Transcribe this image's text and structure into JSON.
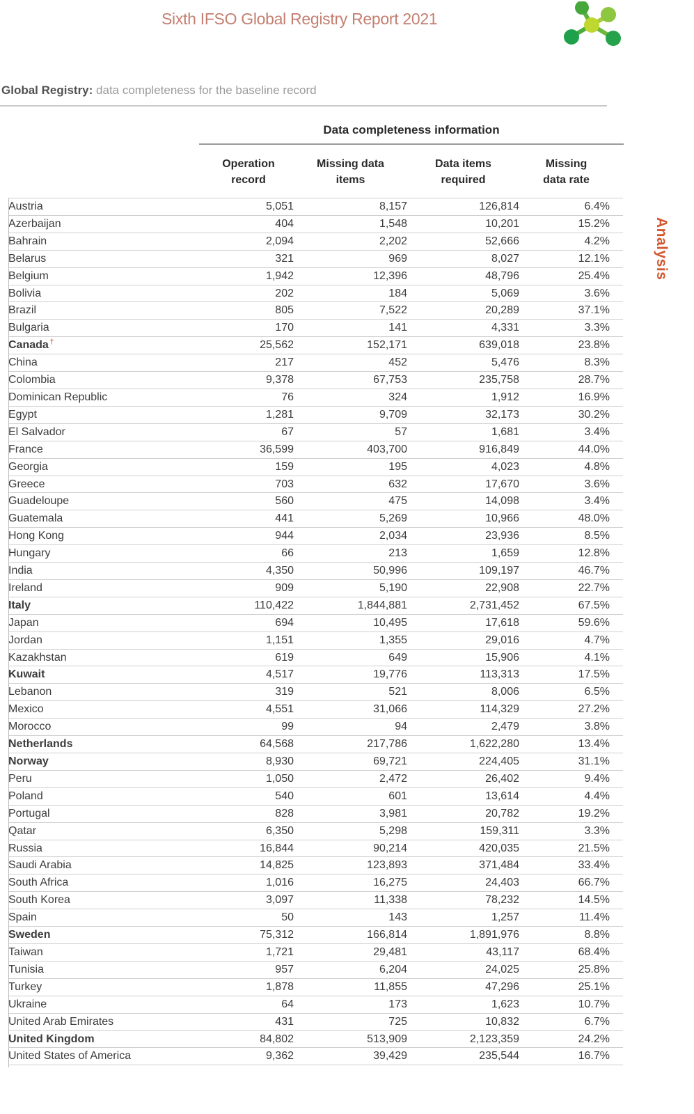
{
  "header": {
    "title": "Sixth IFSO Global Registry Report 2021",
    "logo": "molecule-icon"
  },
  "section": {
    "label_bold": "Global Registry:",
    "label_rest": " data completeness for the baseline record"
  },
  "side_tab": {
    "label": "Analysis"
  },
  "colors": {
    "title_salmon": "#c47f71",
    "highlight_orange": "#d2572f",
    "body_text": "#3c3c3c",
    "rule_gray": "#cfcfcf",
    "logo_greens": [
      "#1fa14c",
      "#46a83b",
      "#8dc63f",
      "#c0d730"
    ]
  },
  "table": {
    "group_header": "Data completeness information",
    "columns": [
      "Operation\nrecord",
      "Missing data\nitems",
      "Data items\nrequired",
      "Missing\ndata rate"
    ],
    "rows": [
      {
        "country": "Austria",
        "operation_record": "5,051",
        "missing_data_items": "8,157",
        "data_items_required": "126,814",
        "missing_data_rate": "6.4%",
        "highlight": false,
        "note": ""
      },
      {
        "country": "Azerbaijan",
        "operation_record": "404",
        "missing_data_items": "1,548",
        "data_items_required": "10,201",
        "missing_data_rate": "15.2%",
        "highlight": false,
        "note": ""
      },
      {
        "country": "Bahrain",
        "operation_record": "2,094",
        "missing_data_items": "2,202",
        "data_items_required": "52,666",
        "missing_data_rate": "4.2%",
        "highlight": false,
        "note": ""
      },
      {
        "country": "Belarus",
        "operation_record": "321",
        "missing_data_items": "969",
        "data_items_required": "8,027",
        "missing_data_rate": "12.1%",
        "highlight": false,
        "note": ""
      },
      {
        "country": "Belgium",
        "operation_record": "1,942",
        "missing_data_items": "12,396",
        "data_items_required": "48,796",
        "missing_data_rate": "25.4%",
        "highlight": false,
        "note": ""
      },
      {
        "country": "Bolivia",
        "operation_record": "202",
        "missing_data_items": "184",
        "data_items_required": "5,069",
        "missing_data_rate": "3.6%",
        "highlight": false,
        "note": ""
      },
      {
        "country": "Brazil",
        "operation_record": "805",
        "missing_data_items": "7,522",
        "data_items_required": "20,289",
        "missing_data_rate": "37.1%",
        "highlight": false,
        "note": ""
      },
      {
        "country": "Bulgaria",
        "operation_record": "170",
        "missing_data_items": "141",
        "data_items_required": "4,331",
        "missing_data_rate": "3.3%",
        "highlight": false,
        "note": ""
      },
      {
        "country": "Canada",
        "operation_record": "25,562",
        "missing_data_items": "152,171",
        "data_items_required": "639,018",
        "missing_data_rate": "23.8%",
        "highlight": true,
        "note": "†"
      },
      {
        "country": "China",
        "operation_record": "217",
        "missing_data_items": "452",
        "data_items_required": "5,476",
        "missing_data_rate": "8.3%",
        "highlight": false,
        "note": ""
      },
      {
        "country": "Colombia",
        "operation_record": "9,378",
        "missing_data_items": "67,753",
        "data_items_required": "235,758",
        "missing_data_rate": "28.7%",
        "highlight": false,
        "note": ""
      },
      {
        "country": "Dominican Republic",
        "operation_record": "76",
        "missing_data_items": "324",
        "data_items_required": "1,912",
        "missing_data_rate": "16.9%",
        "highlight": false,
        "note": ""
      },
      {
        "country": "Egypt",
        "operation_record": "1,281",
        "missing_data_items": "9,709",
        "data_items_required": "32,173",
        "missing_data_rate": "30.2%",
        "highlight": false,
        "note": ""
      },
      {
        "country": "El Salvador",
        "operation_record": "67",
        "missing_data_items": "57",
        "data_items_required": "1,681",
        "missing_data_rate": "3.4%",
        "highlight": false,
        "note": ""
      },
      {
        "country": "France",
        "operation_record": "36,599",
        "missing_data_items": "403,700",
        "data_items_required": "916,849",
        "missing_data_rate": "44.0%",
        "highlight": false,
        "note": ""
      },
      {
        "country": "Georgia",
        "operation_record": "159",
        "missing_data_items": "195",
        "data_items_required": "4,023",
        "missing_data_rate": "4.8%",
        "highlight": false,
        "note": ""
      },
      {
        "country": "Greece",
        "operation_record": "703",
        "missing_data_items": "632",
        "data_items_required": "17,670",
        "missing_data_rate": "3.6%",
        "highlight": false,
        "note": ""
      },
      {
        "country": "Guadeloupe",
        "operation_record": "560",
        "missing_data_items": "475",
        "data_items_required": "14,098",
        "missing_data_rate": "3.4%",
        "highlight": false,
        "note": ""
      },
      {
        "country": "Guatemala",
        "operation_record": "441",
        "missing_data_items": "5,269",
        "data_items_required": "10,966",
        "missing_data_rate": "48.0%",
        "highlight": false,
        "note": ""
      },
      {
        "country": "Hong Kong",
        "operation_record": "944",
        "missing_data_items": "2,034",
        "data_items_required": "23,936",
        "missing_data_rate": "8.5%",
        "highlight": false,
        "note": ""
      },
      {
        "country": "Hungary",
        "operation_record": "66",
        "missing_data_items": "213",
        "data_items_required": "1,659",
        "missing_data_rate": "12.8%",
        "highlight": false,
        "note": ""
      },
      {
        "country": "India",
        "operation_record": "4,350",
        "missing_data_items": "50,996",
        "data_items_required": "109,197",
        "missing_data_rate": "46.7%",
        "highlight": false,
        "note": ""
      },
      {
        "country": "Ireland",
        "operation_record": "909",
        "missing_data_items": "5,190",
        "data_items_required": "22,908",
        "missing_data_rate": "22.7%",
        "highlight": false,
        "note": ""
      },
      {
        "country": "Italy",
        "operation_record": "110,422",
        "missing_data_items": "1,844,881",
        "data_items_required": "2,731,452",
        "missing_data_rate": "67.5%",
        "highlight": true,
        "note": ""
      },
      {
        "country": "Japan",
        "operation_record": "694",
        "missing_data_items": "10,495",
        "data_items_required": "17,618",
        "missing_data_rate": "59.6%",
        "highlight": false,
        "note": ""
      },
      {
        "country": "Jordan",
        "operation_record": "1,151",
        "missing_data_items": "1,355",
        "data_items_required": "29,016",
        "missing_data_rate": "4.7%",
        "highlight": false,
        "note": ""
      },
      {
        "country": "Kazakhstan",
        "operation_record": "619",
        "missing_data_items": "649",
        "data_items_required": "15,906",
        "missing_data_rate": "4.1%",
        "highlight": false,
        "note": ""
      },
      {
        "country": "Kuwait",
        "operation_record": "4,517",
        "missing_data_items": "19,776",
        "data_items_required": "113,313",
        "missing_data_rate": "17.5%",
        "highlight": true,
        "note": ""
      },
      {
        "country": "Lebanon",
        "operation_record": "319",
        "missing_data_items": "521",
        "data_items_required": "8,006",
        "missing_data_rate": "6.5%",
        "highlight": false,
        "note": ""
      },
      {
        "country": "Mexico",
        "operation_record": "4,551",
        "missing_data_items": "31,066",
        "data_items_required": "114,329",
        "missing_data_rate": "27.2%",
        "highlight": false,
        "note": ""
      },
      {
        "country": "Morocco",
        "operation_record": "99",
        "missing_data_items": "94",
        "data_items_required": "2,479",
        "missing_data_rate": "3.8%",
        "highlight": false,
        "note": ""
      },
      {
        "country": "Netherlands",
        "operation_record": "64,568",
        "missing_data_items": "217,786",
        "data_items_required": "1,622,280",
        "missing_data_rate": "13.4%",
        "highlight": true,
        "note": ""
      },
      {
        "country": "Norway",
        "operation_record": "8,930",
        "missing_data_items": "69,721",
        "data_items_required": "224,405",
        "missing_data_rate": "31.1%",
        "highlight": true,
        "note": ""
      },
      {
        "country": "Peru",
        "operation_record": "1,050",
        "missing_data_items": "2,472",
        "data_items_required": "26,402",
        "missing_data_rate": "9.4%",
        "highlight": false,
        "note": ""
      },
      {
        "country": "Poland",
        "operation_record": "540",
        "missing_data_items": "601",
        "data_items_required": "13,614",
        "missing_data_rate": "4.4%",
        "highlight": false,
        "note": ""
      },
      {
        "country": "Portugal",
        "operation_record": "828",
        "missing_data_items": "3,981",
        "data_items_required": "20,782",
        "missing_data_rate": "19.2%",
        "highlight": false,
        "note": ""
      },
      {
        "country": "Qatar",
        "operation_record": "6,350",
        "missing_data_items": "5,298",
        "data_items_required": "159,311",
        "missing_data_rate": "3.3%",
        "highlight": false,
        "note": ""
      },
      {
        "country": "Russia",
        "operation_record": "16,844",
        "missing_data_items": "90,214",
        "data_items_required": "420,035",
        "missing_data_rate": "21.5%",
        "highlight": false,
        "note": ""
      },
      {
        "country": "Saudi Arabia",
        "operation_record": "14,825",
        "missing_data_items": "123,893",
        "data_items_required": "371,484",
        "missing_data_rate": "33.4%",
        "highlight": false,
        "note": ""
      },
      {
        "country": "South Africa",
        "operation_record": "1,016",
        "missing_data_items": "16,275",
        "data_items_required": "24,403",
        "missing_data_rate": "66.7%",
        "highlight": false,
        "note": ""
      },
      {
        "country": "South Korea",
        "operation_record": "3,097",
        "missing_data_items": "11,338",
        "data_items_required": "78,232",
        "missing_data_rate": "14.5%",
        "highlight": false,
        "note": ""
      },
      {
        "country": "Spain",
        "operation_record": "50",
        "missing_data_items": "143",
        "data_items_required": "1,257",
        "missing_data_rate": "11.4%",
        "highlight": false,
        "note": ""
      },
      {
        "country": "Sweden",
        "operation_record": "75,312",
        "missing_data_items": "166,814",
        "data_items_required": "1,891,976",
        "missing_data_rate": "8.8%",
        "highlight": true,
        "note": ""
      },
      {
        "country": "Taiwan",
        "operation_record": "1,721",
        "missing_data_items": "29,481",
        "data_items_required": "43,117",
        "missing_data_rate": "68.4%",
        "highlight": false,
        "note": ""
      },
      {
        "country": "Tunisia",
        "operation_record": "957",
        "missing_data_items": "6,204",
        "data_items_required": "24,025",
        "missing_data_rate": "25.8%",
        "highlight": false,
        "note": ""
      },
      {
        "country": "Turkey",
        "operation_record": "1,878",
        "missing_data_items": "11,855",
        "data_items_required": "47,296",
        "missing_data_rate": "25.1%",
        "highlight": false,
        "note": ""
      },
      {
        "country": "Ukraine",
        "operation_record": "64",
        "missing_data_items": "173",
        "data_items_required": "1,623",
        "missing_data_rate": "10.7%",
        "highlight": false,
        "note": ""
      },
      {
        "country": "United Arab Emirates",
        "operation_record": "431",
        "missing_data_items": "725",
        "data_items_required": "10,832",
        "missing_data_rate": "6.7%",
        "highlight": false,
        "note": ""
      },
      {
        "country": "United Kingdom",
        "operation_record": "84,802",
        "missing_data_items": "513,909",
        "data_items_required": "2,123,359",
        "missing_data_rate": "24.2%",
        "highlight": true,
        "note": ""
      },
      {
        "country": "United States of America",
        "operation_record": "9,362",
        "missing_data_items": "39,429",
        "data_items_required": "235,544",
        "missing_data_rate": "16.7%",
        "highlight": false,
        "note": ""
      }
    ]
  }
}
